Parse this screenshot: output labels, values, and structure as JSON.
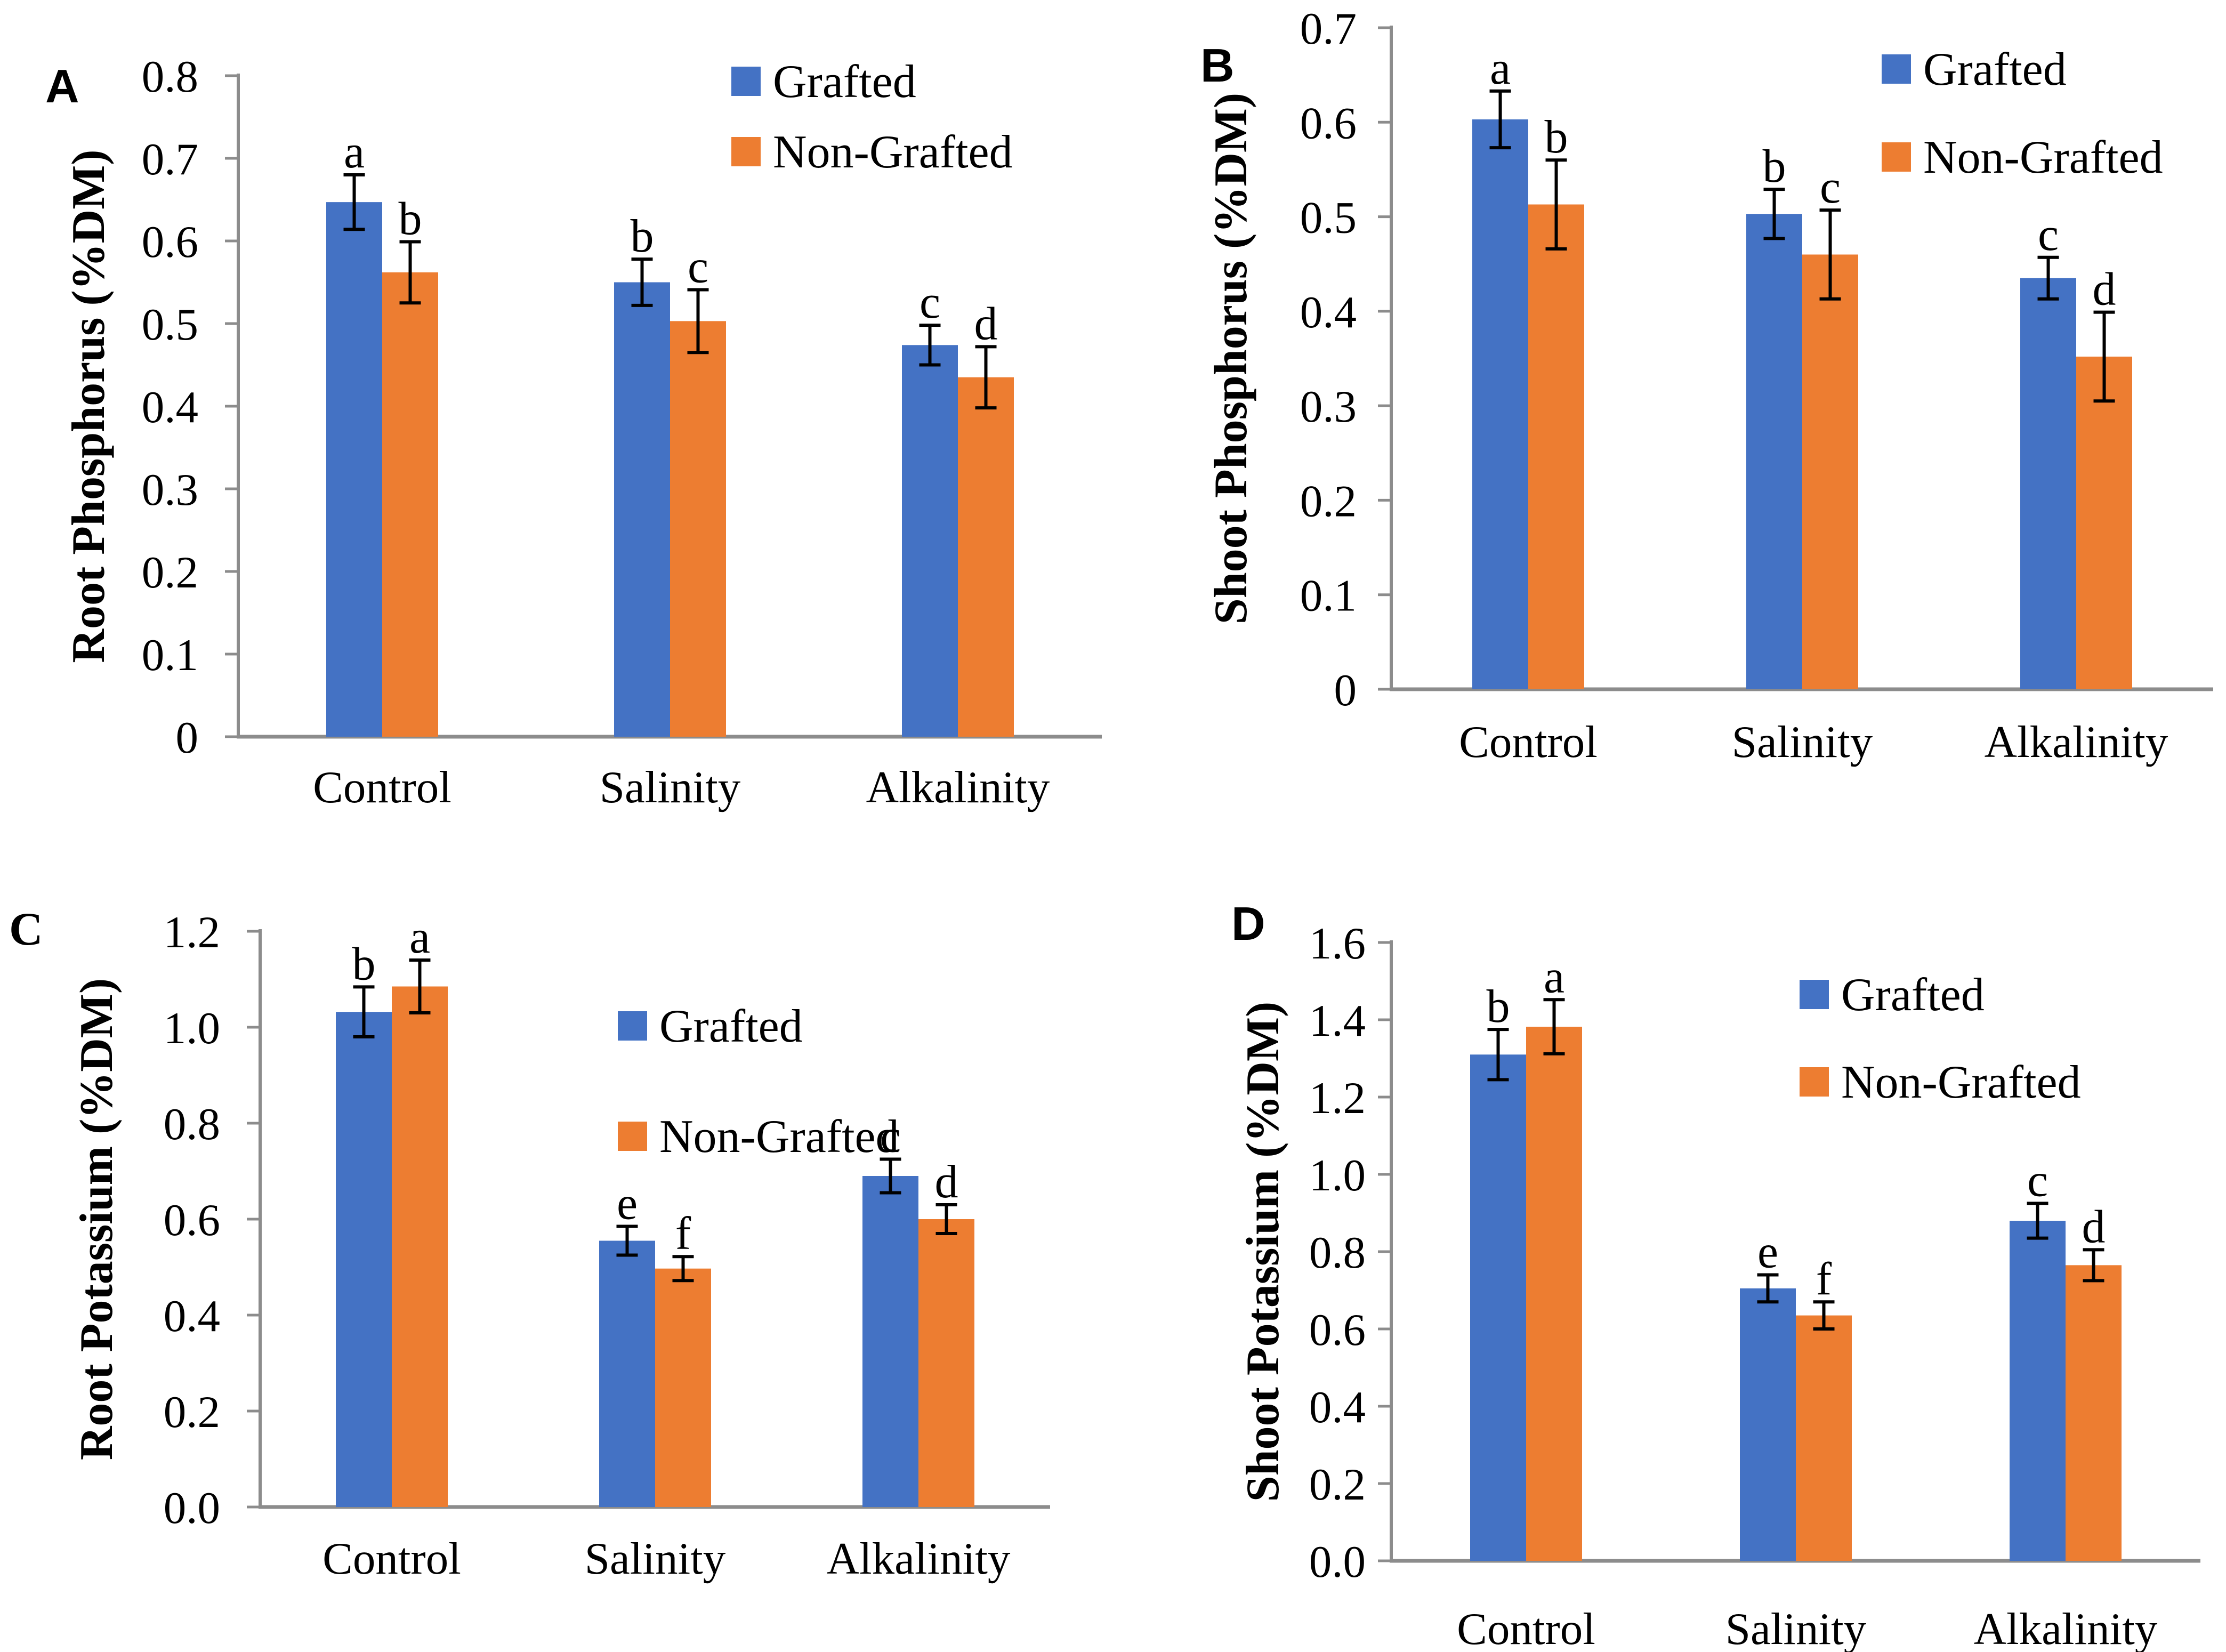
{
  "figure": {
    "description_labels": [
      "A",
      "B",
      "C",
      "D"
    ],
    "colors": {
      "grafted": "#4472C4",
      "non_grafted": "#ED7D31",
      "axis": "#8C8C8C",
      "error_bar": "#000000",
      "text": "#000000"
    },
    "legend": {
      "items": [
        "Grafted",
        "Non-Grafted"
      ]
    }
  },
  "chart_data": [
    {
      "type": "bar",
      "panel_label": "A",
      "title": "",
      "xlabel": "",
      "ylabel": "Root Phosphorus (%DM)",
      "categories": [
        "Control",
        "Salinity",
        "Alkalinity"
      ],
      "ylim": [
        0,
        0.8
      ],
      "ytick_labels": [
        "0.8",
        "0.7",
        "0.6",
        "0.5",
        "0.4",
        "0.3",
        "0.2",
        "0.1",
        "0"
      ],
      "grid": false,
      "legend_position": "top-right-inside",
      "legend_entries": [
        "Grafted",
        "Non-Grafted"
      ],
      "series": [
        {
          "name": "Grafted",
          "color": "#4472C4",
          "values": [
            0.647,
            0.55,
            0.474
          ],
          "errors": [
            0.033,
            0.028,
            0.024
          ],
          "sig_letters": [
            "a",
            "b",
            "c"
          ]
        },
        {
          "name": "Non-Grafted",
          "color": "#ED7D31",
          "values": [
            0.562,
            0.503,
            0.435
          ],
          "errors": [
            0.037,
            0.038,
            0.037
          ],
          "sig_letters": [
            "b",
            "c",
            "d"
          ]
        }
      ]
    },
    {
      "type": "bar",
      "panel_label": "B",
      "title": "",
      "xlabel": "",
      "ylabel": "Shoot Phosphorus (%DM)",
      "categories": [
        "Control",
        "Salinity",
        "Alkalinity"
      ],
      "ylim": [
        0,
        0.7
      ],
      "ytick_labels": [
        "0.7",
        "0.6",
        "0.5",
        "0.4",
        "0.3",
        "0.2",
        "0.1",
        "0"
      ],
      "grid": false,
      "legend_position": "top-right-inside",
      "legend_entries": [
        "Grafted",
        "Non-Grafted"
      ],
      "series": [
        {
          "name": "Grafted",
          "color": "#4472C4",
          "values": [
            0.603,
            0.503,
            0.435
          ],
          "errors": [
            0.03,
            0.026,
            0.022
          ],
          "sig_letters": [
            "a",
            "b",
            "c"
          ]
        },
        {
          "name": "Non-Grafted",
          "color": "#ED7D31",
          "values": [
            0.513,
            0.46,
            0.352
          ],
          "errors": [
            0.047,
            0.047,
            0.047
          ],
          "sig_letters": [
            "b",
            "c",
            "d"
          ]
        }
      ]
    },
    {
      "type": "bar",
      "panel_label": "C",
      "title": "",
      "xlabel": "",
      "ylabel": "Root Potassium (%DM)",
      "categories": [
        "Control",
        "Salinity",
        "Alkalinity"
      ],
      "ylim": [
        0,
        1.2
      ],
      "ytick_labels": [
        "1.2",
        "1.0",
        "0.8",
        "0.6",
        "0.4",
        "0.2",
        "0.0"
      ],
      "grid": false,
      "legend_position": "top-right-inside",
      "legend_entries": [
        "Grafted",
        "Non-Grafted"
      ],
      "series": [
        {
          "name": "Grafted",
          "color": "#4472C4",
          "values": [
            1.032,
            0.555,
            0.69
          ],
          "errors": [
            0.052,
            0.03,
            0.035
          ],
          "sig_letters": [
            "b",
            "e",
            "c"
          ]
        },
        {
          "name": "Non-Grafted",
          "color": "#ED7D31",
          "values": [
            1.085,
            0.497,
            0.6
          ],
          "errors": [
            0.055,
            0.025,
            0.03
          ],
          "sig_letters": [
            "a",
            "f",
            "d"
          ]
        }
      ]
    },
    {
      "type": "bar",
      "panel_label": "D",
      "title": "",
      "xlabel": "",
      "ylabel": "Shoot Potassium (%DM)",
      "categories": [
        "Control",
        "Salinity",
        "Alkalinity"
      ],
      "ylim": [
        0,
        1.6
      ],
      "ytick_labels": [
        "1.6",
        "1.4",
        "1.2",
        "1.0",
        "0.8",
        "0.6",
        "0.4",
        "0.2",
        "0.0"
      ],
      "grid": false,
      "legend_position": "top-right-inside",
      "legend_entries": [
        "Grafted",
        "Non-Grafted"
      ],
      "series": [
        {
          "name": "Grafted",
          "color": "#4472C4",
          "values": [
            1.31,
            0.705,
            0.88
          ],
          "errors": [
            0.065,
            0.035,
            0.045
          ],
          "sig_letters": [
            "b",
            "e",
            "c"
          ]
        },
        {
          "name": "Non-Grafted",
          "color": "#ED7D31",
          "values": [
            1.382,
            0.635,
            0.765
          ],
          "errors": [
            0.07,
            0.035,
            0.04
          ],
          "sig_letters": [
            "a",
            "f",
            "d"
          ]
        }
      ]
    }
  ]
}
